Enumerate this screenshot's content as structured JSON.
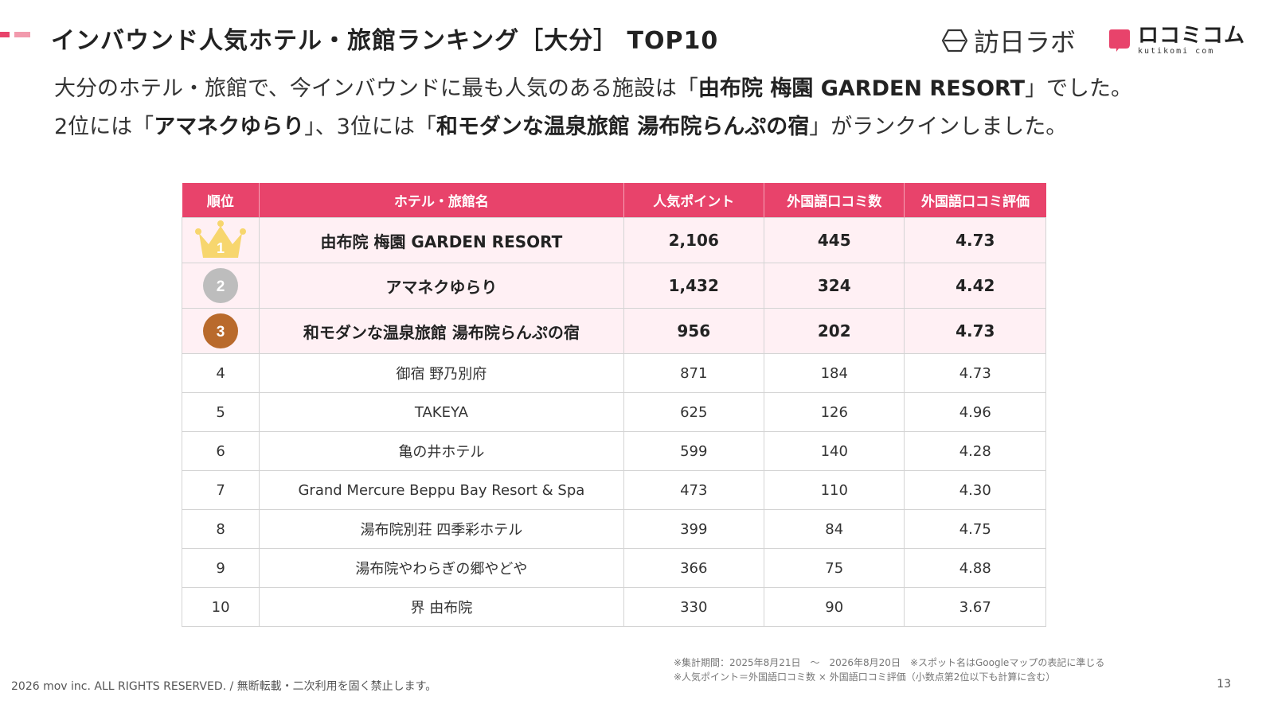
{
  "title": "インバウンド人気ホテル・旅館ランキング［大分］ TOP10",
  "logos": {
    "hounichi": "訪日ラボ",
    "kuchikomi_main": "ロコミコム",
    "kuchikomi_sub": "kutikomi com"
  },
  "lead": {
    "l1_a": "大分のホテル・旅館で、今インバウンドに最も人気のある施設は「",
    "l1_b": "由布院 梅園 GARDEN RESORT",
    "l1_c": "」でした。",
    "l2_a": "2位には「",
    "l2_b": "アマネクゆらり",
    "l2_c": "」、3位には「",
    "l2_d": "和モダンな温泉旅館 湯布院らんぷの宿",
    "l2_e": "」がランクインしました。"
  },
  "table": {
    "headers": [
      "順位",
      "ホテル・旅館名",
      "人気ポイント",
      "外国語口コミ数",
      "外国語口コミ評価"
    ],
    "rows": [
      {
        "rank": "1",
        "name": "由布院 梅園 GARDEN RESORT",
        "points": "2,106",
        "count": "445",
        "rating": "4.73"
      },
      {
        "rank": "2",
        "name": "アマネクゆらり",
        "points": "1,432",
        "count": "324",
        "rating": "4.42"
      },
      {
        "rank": "3",
        "name": "和モダンな温泉旅館 湯布院らんぷの宿",
        "points": "956",
        "count": "202",
        "rating": "4.73"
      },
      {
        "rank": "4",
        "name": "御宿 野乃別府",
        "points": "871",
        "count": "184",
        "rating": "4.73"
      },
      {
        "rank": "5",
        "name": "TAKEYA",
        "points": "625",
        "count": "126",
        "rating": "4.96"
      },
      {
        "rank": "6",
        "name": "亀の井ホテル",
        "points": "599",
        "count": "140",
        "rating": "4.28"
      },
      {
        "rank": "7",
        "name": "Grand Mercure Beppu Bay Resort & Spa",
        "points": "473",
        "count": "110",
        "rating": "4.30"
      },
      {
        "rank": "8",
        "name": "湯布院別荘 四季彩ホテル",
        "points": "399",
        "count": "84",
        "rating": "4.75"
      },
      {
        "rank": "9",
        "name": "湯布院やわらぎの郷やどや",
        "points": "366",
        "count": "75",
        "rating": "4.88"
      },
      {
        "rank": "10",
        "name": "界 由布院",
        "points": "330",
        "count": "90",
        "rating": "3.67"
      }
    ]
  },
  "footnotes": {
    "line1": "※集計期間：2025年8月21日　〜　2026年8月20日　※スポット名はGoogleマップの表記に準じる",
    "line2": "※人気ポイント＝外国語口コミ数 × 外国語口コミ評価（小数点第2位以下も計算に含む）"
  },
  "copyright": "2026 mov inc. ALL RIGHTS RESERVED. / 無断転載・二次利用を固く禁止します。",
  "page_number": "13",
  "colors": {
    "accent": "#e8436b",
    "accent_light": "#f29aad",
    "row_highlight": "#fff0f4",
    "gold": "#f7d66e",
    "silver": "#bdbdbd",
    "bronze": "#b96a2c"
  }
}
